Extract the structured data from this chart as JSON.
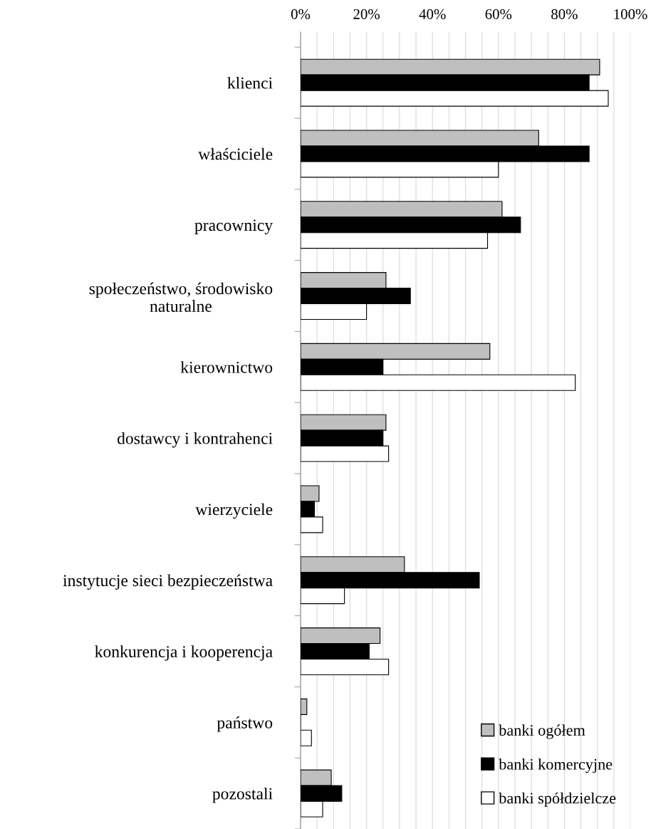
{
  "chart_data": {
    "type": "bar",
    "orientation": "horizontal",
    "categories": [
      "klienci",
      "właściciele",
      "pracownicy",
      "społeczeństwo, środowisko\nnaturalne",
      "kierownictwo",
      "dostawcy i kontrahenci",
      "wierzyciele",
      "instytucje sieci bezpieczeństwa",
      "konkurencja i kooperencja",
      "państwo",
      "pozostali"
    ],
    "series": [
      {
        "name": "banki ogółem",
        "color": "#bfbfbf",
        "values": [
          90.7,
          72.2,
          61.1,
          25.9,
          57.4,
          25.9,
          5.6,
          31.5,
          24.1,
          1.9,
          9.3
        ]
      },
      {
        "name": "banki komercyjne",
        "color": "#000000",
        "values": [
          87.5,
          87.5,
          66.7,
          33.3,
          25.0,
          25.0,
          4.2,
          54.2,
          20.8,
          0,
          12.5
        ]
      },
      {
        "name": "banki spółdzielcze",
        "color": "#ffffff",
        "values": [
          93.3,
          60.0,
          56.7,
          20.0,
          83.3,
          26.7,
          6.7,
          13.3,
          26.7,
          3.3,
          6.7
        ]
      }
    ],
    "xlim": [
      0,
      100
    ],
    "xticks": [
      {
        "value": 0,
        "label": "0%"
      },
      {
        "value": 5,
        "label": null
      },
      {
        "value": 10,
        "label": null
      },
      {
        "value": 15,
        "label": null
      },
      {
        "value": 20,
        "label": "20%"
      },
      {
        "value": 25,
        "label": null
      },
      {
        "value": 30,
        "label": null
      },
      {
        "value": 35,
        "label": null
      },
      {
        "value": 40,
        "label": "40%"
      },
      {
        "value": 45,
        "label": null
      },
      {
        "value": 50,
        "label": null
      },
      {
        "value": 55,
        "label": null
      },
      {
        "value": 60,
        "label": "60%"
      },
      {
        "value": 65,
        "label": null
      },
      {
        "value": 70,
        "label": null
      },
      {
        "value": 75,
        "label": null
      },
      {
        "value": 80,
        "label": "80%"
      },
      {
        "value": 85,
        "label": null
      },
      {
        "value": 90,
        "label": null
      },
      {
        "value": 95,
        "label": null
      },
      {
        "value": 100,
        "label": "100%"
      }
    ],
    "grid": "x",
    "legend": "bottom right"
  }
}
